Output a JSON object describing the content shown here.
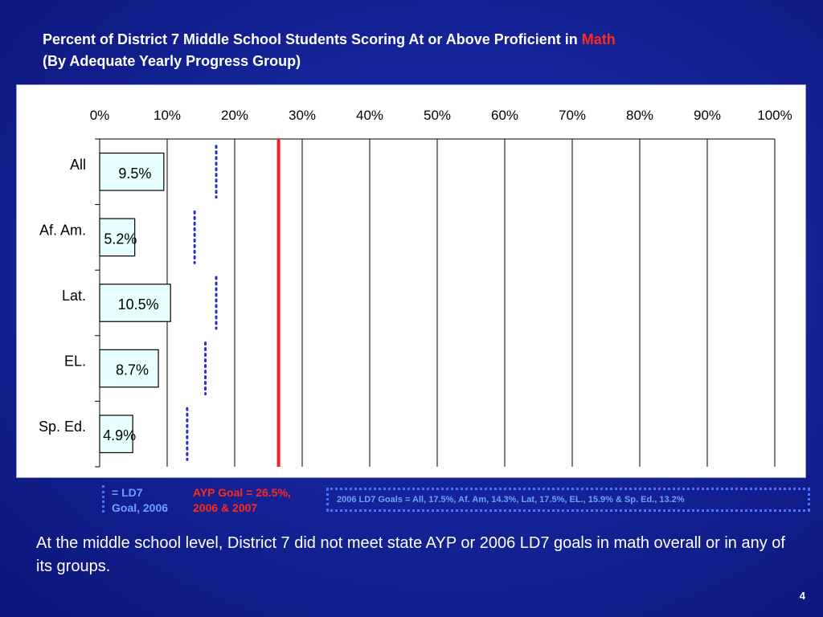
{
  "title": {
    "line1_prefix": "Percent of District 7 Middle School Students Scoring At or Above Proficient in",
    "line1_highlight": "Math",
    "line2": "(By Adequate Yearly Progress Group)"
  },
  "chart_data": {
    "type": "bar",
    "orientation": "horizontal",
    "categories": [
      "All",
      "Af. Am.",
      "Lat.",
      "EL.",
      "Sp. Ed."
    ],
    "values": [
      9.5,
      5.2,
      10.5,
      8.7,
      4.9
    ],
    "value_labels": [
      "9.5%",
      "5.2%",
      "10.5%",
      "8.7%",
      "4.9%"
    ],
    "ld7_goals_2006": [
      17.5,
      14.3,
      17.5,
      15.9,
      13.2
    ],
    "ayp_goal": 26.5,
    "xlim": [
      0,
      100
    ],
    "x_ticks": [
      0,
      10,
      20,
      30,
      40,
      50,
      60,
      70,
      80,
      90,
      100
    ],
    "x_tick_labels": [
      "0%",
      "10%",
      "20%",
      "30%",
      "40%",
      "50%",
      "60%",
      "70%",
      "80%",
      "90%",
      "100%"
    ],
    "grid": true,
    "bar_color": "#e6ffff",
    "ayp_line_color": "#ee2222",
    "goal_marker_color": "#2a2ad0"
  },
  "legend": {
    "ld7_line1": "= LD7",
    "ld7_line2": "Goal, 2006",
    "ayp_line1": "AYP Goal = 26.5%,",
    "ayp_line2": "2006 & 2007",
    "goals_text": "2006 LD7 Goals = All, 17.5%, Af. Am, 14.3%, Lat, 17.5%, EL., 15.9% & Sp. Ed., 13.2%"
  },
  "summary": "At the middle school level, District 7 did not meet state AYP or 2006 LD7 goals in math overall or in any of its groups.",
  "page_number": "4"
}
